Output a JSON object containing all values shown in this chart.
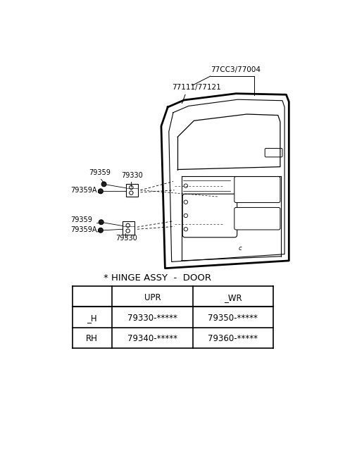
{
  "bg_color": "#ffffff",
  "title": "* HINGE ASSY  -  DOOR",
  "label_77003_77004": "77CC3/77004",
  "label_77111_77121": "77111/77121",
  "label_79359_upper": "79359",
  "label_79330_upper": "79330",
  "label_79359A_upper": "79359A",
  "label_79359_lower": "79359",
  "label_79359A_lower": "79359A",
  "label_79330_lower": "79330",
  "table_header": [
    "",
    "UPR",
    "_WR"
  ],
  "table_row1": [
    "_H",
    "79330-*****",
    "79350-*****"
  ],
  "table_row2": [
    "RH",
    "79340-*****",
    "79360-*****"
  ],
  "font_size_labels": 7.5,
  "font_size_table": 8.5,
  "font_size_title": 9.5,
  "lc": "#000000",
  "lw": 1.0
}
